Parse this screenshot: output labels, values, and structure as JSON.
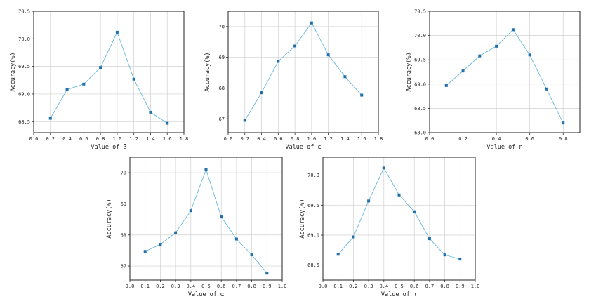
{
  "figure": {
    "line_color": "#67b7dc",
    "marker_color": "#1f6faa"
  },
  "chart_data": [
    {
      "id": "beta",
      "type": "line",
      "xlabel": "Value of β",
      "ylabel": "Accuracy(%)",
      "xlim": [
        0.0,
        1.8
      ],
      "ylim": [
        68.3,
        70.5
      ],
      "xticks": [
        0.0,
        0.2,
        0.4,
        0.6,
        0.8,
        1.0,
        1.2,
        1.4,
        1.6,
        1.8
      ],
      "xtick_labels": [
        "0.0",
        "0.2",
        "0.4",
        "0.6",
        "0.8",
        "1.0",
        "1.2",
        "1.4",
        "1.6",
        "1.8"
      ],
      "yticks": [
        68.5,
        69.0,
        69.5,
        70.0,
        70.5
      ],
      "ytick_labels": [
        "68.5",
        "69.0",
        "69.5",
        "70.0",
        "70.5"
      ],
      "grid": true,
      "x": [
        0.2,
        0.4,
        0.6,
        0.8,
        1.0,
        1.2,
        1.4,
        1.6
      ],
      "y": [
        68.56,
        69.08,
        69.18,
        69.48,
        70.12,
        69.27,
        68.67,
        68.47
      ]
    },
    {
      "id": "epsilon",
      "type": "line",
      "xlabel": "Value of ε",
      "ylabel": "Accuracy(%)",
      "xlim": [
        0.0,
        1.8
      ],
      "ylim": [
        66.55,
        70.5
      ],
      "xticks": [
        0.0,
        0.2,
        0.4,
        0.6,
        0.8,
        1.0,
        1.2,
        1.4,
        1.6,
        1.8
      ],
      "xtick_labels": [
        "0.0",
        "0.2",
        "0.4",
        "0.6",
        "0.8",
        "1.0",
        "1.2",
        "1.4",
        "1.6",
        "1.8"
      ],
      "yticks": [
        67,
        68,
        69,
        70
      ],
      "ytick_labels": [
        "67",
        "68",
        "69",
        "70"
      ],
      "grid": true,
      "x": [
        0.2,
        0.4,
        0.6,
        0.8,
        1.0,
        1.2,
        1.4,
        1.6
      ],
      "y": [
        66.95,
        67.85,
        68.87,
        69.37,
        70.12,
        69.08,
        68.37,
        67.77
      ]
    },
    {
      "id": "eta",
      "type": "line",
      "xlabel": "Value of η",
      "ylabel": "Accuracy(%)",
      "xlim": [
        0.0,
        0.9
      ],
      "ylim": [
        68.0,
        70.5
      ],
      "xticks": [
        0.0,
        0.2,
        0.4,
        0.6,
        0.8
      ],
      "xtick_labels": [
        "0.0",
        "0.2",
        "0.4",
        "0.6",
        "0.8"
      ],
      "yticks": [
        68.0,
        68.5,
        69.0,
        69.5,
        70.0,
        70.5
      ],
      "ytick_labels": [
        "68.0",
        "68.5",
        "69.0",
        "69.5",
        "70.0",
        "70.5"
      ],
      "grid": true,
      "x": [
        0.1,
        0.2,
        0.3,
        0.4,
        0.5,
        0.6,
        0.7,
        0.8
      ],
      "y": [
        68.97,
        69.27,
        69.58,
        69.78,
        70.12,
        69.6,
        68.9,
        68.2
      ]
    },
    {
      "id": "alpha",
      "type": "line",
      "xlabel": "Value of α",
      "ylabel": "Accuracy(%)",
      "xlim": [
        0.0,
        1.0
      ],
      "ylim": [
        66.55,
        70.5
      ],
      "xticks": [
        0.0,
        0.1,
        0.2,
        0.3,
        0.4,
        0.5,
        0.6,
        0.7,
        0.8,
        0.9,
        1.0
      ],
      "xtick_labels": [
        "0.0",
        "0.1",
        "0.2",
        "0.3",
        "0.4",
        "0.5",
        "0.6",
        "0.7",
        "0.8",
        "0.9",
        "1.0"
      ],
      "yticks": [
        67,
        68,
        69,
        70
      ],
      "ytick_labels": [
        "67",
        "68",
        "69",
        "70"
      ],
      "grid": true,
      "x": [
        0.1,
        0.2,
        0.3,
        0.4,
        0.5,
        0.6,
        0.7,
        0.8,
        0.9
      ],
      "y": [
        67.47,
        67.7,
        68.07,
        68.78,
        70.1,
        68.58,
        67.87,
        67.36,
        66.77
      ]
    },
    {
      "id": "tau",
      "type": "line",
      "xlabel": "Value of τ",
      "ylabel": "Accuracy(%)",
      "xlim": [
        0.0,
        1.0
      ],
      "ylim": [
        68.25,
        70.3
      ],
      "xticks": [
        0.0,
        0.1,
        0.2,
        0.3,
        0.4,
        0.5,
        0.6,
        0.7,
        0.8,
        0.9,
        1.0
      ],
      "xtick_labels": [
        "0.0",
        "0.1",
        "0.2",
        "0.3",
        "0.4",
        "0.5",
        "0.6",
        "0.7",
        "0.8",
        "0.9",
        "1.0"
      ],
      "yticks": [
        68.5,
        69.0,
        69.5,
        70.0
      ],
      "ytick_labels": [
        "68.5",
        "69.0",
        "69.5",
        "70.0"
      ],
      "grid": true,
      "x": [
        0.1,
        0.2,
        0.3,
        0.4,
        0.5,
        0.6,
        0.7,
        0.8,
        0.9
      ],
      "y": [
        68.68,
        68.97,
        69.57,
        70.12,
        69.67,
        69.39,
        68.94,
        68.67,
        68.6
      ]
    }
  ]
}
